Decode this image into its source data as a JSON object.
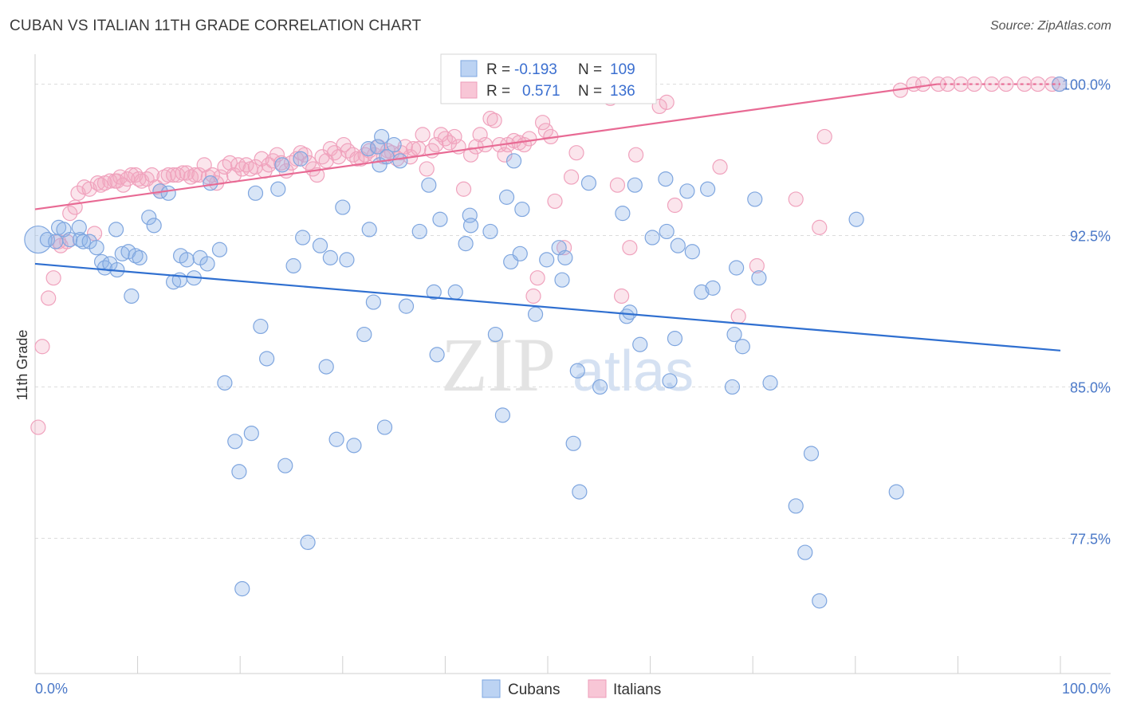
{
  "header": {
    "title": "CUBAN VS ITALIAN 11TH GRADE CORRELATION CHART",
    "source": "Source: ZipAtlas.com"
  },
  "colors": {
    "cubans": "#8fb4e8",
    "cubans_line": "#2f6fd0",
    "italians": "#f3a8c0",
    "italians_line": "#e86a94"
  },
  "legend": {
    "row1": {
      "r_label": "R =",
      "r_value": "-0.193",
      "n_label": "N =",
      "n_value": "109"
    },
    "row2": {
      "r_label": "R =",
      "r_value": "0.571",
      "n_label": "N =",
      "n_value": "136"
    }
  },
  "watermark": {
    "part1": "ZIP",
    "part2": "atlas"
  },
  "chart_data": {
    "type": "scatter",
    "ylabel": "11th Grade",
    "xlim": [
      0,
      100
    ],
    "ylim": [
      70.8,
      101.8
    ],
    "y_ticks": [
      {
        "v": 100,
        "label": "100.0%"
      },
      {
        "v": 92.5,
        "label": "92.5%"
      },
      {
        "v": 85,
        "label": "85.0%"
      },
      {
        "v": 77.5,
        "label": "77.5%"
      }
    ],
    "x_tick_labels": {
      "left": "0.0%",
      "right": "100.0%"
    },
    "legend_position": "bottom-center",
    "series": [
      {
        "name": "Cubans",
        "trend": {
          "x0": 0,
          "y0": 91.1,
          "x1": 100,
          "y1": 86.8
        },
        "points": [
          [
            0.3,
            92.3
          ],
          [
            1.2,
            92.3
          ],
          [
            2.0,
            92.2
          ],
          [
            2.3,
            92.9
          ],
          [
            2.8,
            92.8
          ],
          [
            3.4,
            92.3
          ],
          [
            4.3,
            92.9
          ],
          [
            4.4,
            92.3
          ],
          [
            4.7,
            92.2
          ],
          [
            5.3,
            92.2
          ],
          [
            6.0,
            91.9
          ],
          [
            6.5,
            91.2
          ],
          [
            6.8,
            90.9
          ],
          [
            7.3,
            91.1
          ],
          [
            7.9,
            92.8
          ],
          [
            8.0,
            90.8
          ],
          [
            8.5,
            91.6
          ],
          [
            9.1,
            91.7
          ],
          [
            9.4,
            89.5
          ],
          [
            9.8,
            91.5
          ],
          [
            10.2,
            91.4
          ],
          [
            11.1,
            93.4
          ],
          [
            11.6,
            93.0
          ],
          [
            12.2,
            94.7
          ],
          [
            13.0,
            94.6
          ],
          [
            13.5,
            90.2
          ],
          [
            14.1,
            90.3
          ],
          [
            14.2,
            91.5
          ],
          [
            14.8,
            91.3
          ],
          [
            15.5,
            90.4
          ],
          [
            16.1,
            91.4
          ],
          [
            16.8,
            91.1
          ],
          [
            17.1,
            95.1
          ],
          [
            18.0,
            91.8
          ],
          [
            18.5,
            85.2
          ],
          [
            19.5,
            82.3
          ],
          [
            19.9,
            80.8
          ],
          [
            20.2,
            75.0
          ],
          [
            21.1,
            82.7
          ],
          [
            21.5,
            94.6
          ],
          [
            22.0,
            88.0
          ],
          [
            22.6,
            86.4
          ],
          [
            23.7,
            94.8
          ],
          [
            24.1,
            96.0
          ],
          [
            24.4,
            81.1
          ],
          [
            25.2,
            91.0
          ],
          [
            25.9,
            96.3
          ],
          [
            26.1,
            92.4
          ],
          [
            26.6,
            77.3
          ],
          [
            27.8,
            92.0
          ],
          [
            28.4,
            86.0
          ],
          [
            28.8,
            91.4
          ],
          [
            29.4,
            82.4
          ],
          [
            30.0,
            93.9
          ],
          [
            30.4,
            91.3
          ],
          [
            31.1,
            82.1
          ],
          [
            32.1,
            87.6
          ],
          [
            32.5,
            96.8
          ],
          [
            32.6,
            92.8
          ],
          [
            33.0,
            89.2
          ],
          [
            33.4,
            96.9
          ],
          [
            33.6,
            96.0
          ],
          [
            33.8,
            97.4
          ],
          [
            34.1,
            83.0
          ],
          [
            34.3,
            96.4
          ],
          [
            35.0,
            97.0
          ],
          [
            35.6,
            96.2
          ],
          [
            36.2,
            89.0
          ],
          [
            37.5,
            92.7
          ],
          [
            38.4,
            95.0
          ],
          [
            38.9,
            89.7
          ],
          [
            39.2,
            86.6
          ],
          [
            39.5,
            93.3
          ],
          [
            41.0,
            89.7
          ],
          [
            42.0,
            92.1
          ],
          [
            42.4,
            93.5
          ],
          [
            42.5,
            93.0
          ],
          [
            44.4,
            92.7
          ],
          [
            44.9,
            87.6
          ],
          [
            45.6,
            83.6
          ],
          [
            46.0,
            94.4
          ],
          [
            46.4,
            91.2
          ],
          [
            46.7,
            96.2
          ],
          [
            47.3,
            91.6
          ],
          [
            47.5,
            93.8
          ],
          [
            48.8,
            88.6
          ],
          [
            49.9,
            91.3
          ],
          [
            51.1,
            91.9
          ],
          [
            51.4,
            90.3
          ],
          [
            51.7,
            91.4
          ],
          [
            52.5,
            82.2
          ],
          [
            52.9,
            85.8
          ],
          [
            53.1,
            79.8
          ],
          [
            54.0,
            95.1
          ],
          [
            55.1,
            85.0
          ],
          [
            57.3,
            93.6
          ],
          [
            57.7,
            88.5
          ],
          [
            58.0,
            88.7
          ],
          [
            58.5,
            95.0
          ],
          [
            59.0,
            87.1
          ],
          [
            60.2,
            92.4
          ],
          [
            61.5,
            95.3
          ],
          [
            61.6,
            92.7
          ],
          [
            61.9,
            85.3
          ],
          [
            62.7,
            92.0
          ],
          [
            62.4,
            87.4
          ],
          [
            63.6,
            94.7
          ],
          [
            64.1,
            91.7
          ],
          [
            65.0,
            89.7
          ],
          [
            65.6,
            94.8
          ],
          [
            66.1,
            89.9
          ],
          [
            68.0,
            85.0
          ],
          [
            68.2,
            87.6
          ],
          [
            68.4,
            90.9
          ],
          [
            69.0,
            87.0
          ],
          [
            70.2,
            94.3
          ],
          [
            70.6,
            90.4
          ],
          [
            71.7,
            85.2
          ],
          [
            74.2,
            79.1
          ],
          [
            75.1,
            76.8
          ],
          [
            75.7,
            81.7
          ],
          [
            76.5,
            74.4
          ],
          [
            80.1,
            93.3
          ],
          [
            84.0,
            79.8
          ],
          [
            99.9,
            100.0
          ]
        ]
      },
      {
        "name": "Italians",
        "trend": {
          "x0": 0,
          "y0": 93.8,
          "x1": 88,
          "y1": 100.0
        },
        "points": [
          [
            0.3,
            83.0
          ],
          [
            0.7,
            87.0
          ],
          [
            1.3,
            89.4
          ],
          [
            1.8,
            90.4
          ],
          [
            2.3,
            92.2
          ],
          [
            2.5,
            92.0
          ],
          [
            3.1,
            92.2
          ],
          [
            3.4,
            93.6
          ],
          [
            3.9,
            93.9
          ],
          [
            4.2,
            94.6
          ],
          [
            4.8,
            94.9
          ],
          [
            5.3,
            94.8
          ],
          [
            5.8,
            92.6
          ],
          [
            6.1,
            95.1
          ],
          [
            6.4,
            95.0
          ],
          [
            6.8,
            95.1
          ],
          [
            7.3,
            95.2
          ],
          [
            7.8,
            95.2
          ],
          [
            8.0,
            95.2
          ],
          [
            8.3,
            95.4
          ],
          [
            8.6,
            95.0
          ],
          [
            9.0,
            95.3
          ],
          [
            9.4,
            95.5
          ],
          [
            9.8,
            95.5
          ],
          [
            10.1,
            95.3
          ],
          [
            10.4,
            95.2
          ],
          [
            10.9,
            95.3
          ],
          [
            11.4,
            95.5
          ],
          [
            11.8,
            94.9
          ],
          [
            12.2,
            94.7
          ],
          [
            12.6,
            95.4
          ],
          [
            13.0,
            95.5
          ],
          [
            13.5,
            95.5
          ],
          [
            13.9,
            95.5
          ],
          [
            14.4,
            95.6
          ],
          [
            14.8,
            95.6
          ],
          [
            15.2,
            95.4
          ],
          [
            15.6,
            95.5
          ],
          [
            16.0,
            95.5
          ],
          [
            16.5,
            96.0
          ],
          [
            16.9,
            95.4
          ],
          [
            17.3,
            95.5
          ],
          [
            17.7,
            95.1
          ],
          [
            18.1,
            95.4
          ],
          [
            18.5,
            95.9
          ],
          [
            19.0,
            96.1
          ],
          [
            19.4,
            95.5
          ],
          [
            19.8,
            96.0
          ],
          [
            20.2,
            95.8
          ],
          [
            20.6,
            96.0
          ],
          [
            21.0,
            95.8
          ],
          [
            21.5,
            95.9
          ],
          [
            22.1,
            96.3
          ],
          [
            22.4,
            95.7
          ],
          [
            22.8,
            96.0
          ],
          [
            23.2,
            96.2
          ],
          [
            23.6,
            96.5
          ],
          [
            24.0,
            96.1
          ],
          [
            24.5,
            95.7
          ],
          [
            25.0,
            96.1
          ],
          [
            25.5,
            96.3
          ],
          [
            25.9,
            96.6
          ],
          [
            26.3,
            96.5
          ],
          [
            26.7,
            96.1
          ],
          [
            27.1,
            95.8
          ],
          [
            27.5,
            95.5
          ],
          [
            28.0,
            96.4
          ],
          [
            28.4,
            96.2
          ],
          [
            28.8,
            96.8
          ],
          [
            29.2,
            96.6
          ],
          [
            29.6,
            96.4
          ],
          [
            30.1,
            97.0
          ],
          [
            30.5,
            96.7
          ],
          [
            31.0,
            96.5
          ],
          [
            31.4,
            96.3
          ],
          [
            31.8,
            96.3
          ],
          [
            32.2,
            96.5
          ],
          [
            32.6,
            96.7
          ],
          [
            33.1,
            96.5
          ],
          [
            33.5,
            96.9
          ],
          [
            34.0,
            96.4
          ],
          [
            34.4,
            96.7
          ],
          [
            34.8,
            96.6
          ],
          [
            35.3,
            96.3
          ],
          [
            35.7,
            96.6
          ],
          [
            36.1,
            96.9
          ],
          [
            36.6,
            96.4
          ],
          [
            36.9,
            96.8
          ],
          [
            37.4,
            96.8
          ],
          [
            37.8,
            97.5
          ],
          [
            38.2,
            95.8
          ],
          [
            38.7,
            96.7
          ],
          [
            39.1,
            97.0
          ],
          [
            39.6,
            97.5
          ],
          [
            40.0,
            97.3
          ],
          [
            40.4,
            97.1
          ],
          [
            40.9,
            97.4
          ],
          [
            41.3,
            96.9
          ],
          [
            41.8,
            94.8
          ],
          [
            42.5,
            96.5
          ],
          [
            43.0,
            96.9
          ],
          [
            43.4,
            97.5
          ],
          [
            43.9,
            97.0
          ],
          [
            44.4,
            98.3
          ],
          [
            44.8,
            98.2
          ],
          [
            45.3,
            97.0
          ],
          [
            45.8,
            96.5
          ],
          [
            46.1,
            97.0
          ],
          [
            46.7,
            97.2
          ],
          [
            47.2,
            97.1
          ],
          [
            47.7,
            97.0
          ],
          [
            48.2,
            97.3
          ],
          [
            48.6,
            89.5
          ],
          [
            49.0,
            90.4
          ],
          [
            49.5,
            98.1
          ],
          [
            49.8,
            97.7
          ],
          [
            50.3,
            97.4
          ],
          [
            50.7,
            94.2
          ],
          [
            51.6,
            91.9
          ],
          [
            52.3,
            95.4
          ],
          [
            52.8,
            96.6
          ],
          [
            54.7,
            99.5
          ],
          [
            56.1,
            99.3
          ],
          [
            56.8,
            95.0
          ],
          [
            57.2,
            89.5
          ],
          [
            58.0,
            91.9
          ],
          [
            58.6,
            96.5
          ],
          [
            60.9,
            98.9
          ],
          [
            61.6,
            99.1
          ],
          [
            62.4,
            94.0
          ],
          [
            66.8,
            95.9
          ],
          [
            68.6,
            88.5
          ],
          [
            70.4,
            91.0
          ],
          [
            74.2,
            94.3
          ],
          [
            76.5,
            92.9
          ],
          [
            77.0,
            97.4
          ],
          [
            84.4,
            99.7
          ],
          [
            85.7,
            100.0
          ],
          [
            86.6,
            100.0
          ],
          [
            88.1,
            100.0
          ],
          [
            89.0,
            100.0
          ],
          [
            90.3,
            100.0
          ],
          [
            91.6,
            100.0
          ],
          [
            93.3,
            100.0
          ],
          [
            94.7,
            100.0
          ],
          [
            96.5,
            100.0
          ],
          [
            97.8,
            100.0
          ],
          [
            99.2,
            100.0
          ],
          [
            99.9,
            100.0
          ]
        ]
      }
    ]
  },
  "bottom_legend": {
    "cubans": "Cubans",
    "italians": "Italians"
  }
}
